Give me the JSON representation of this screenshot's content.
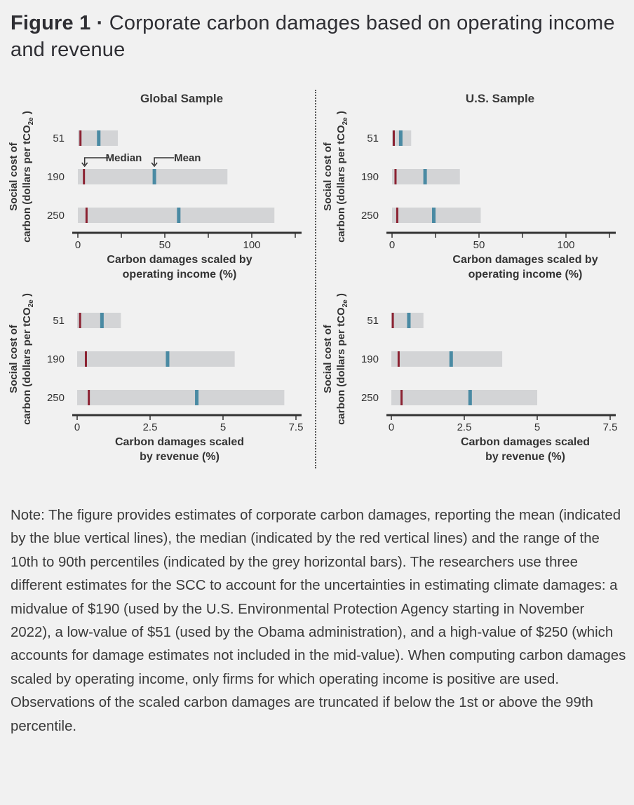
{
  "figure": {
    "label": "Figure 1 ·",
    "title": "Corporate carbon damages based on operating income and revenue"
  },
  "columns": {
    "left_title": "Global Sample",
    "right_title": "U.S. Sample"
  },
  "annotations": {
    "median": "Median",
    "mean": "Mean"
  },
  "colors": {
    "bar": "#d3d4d6",
    "median": "#8b2232",
    "mean": "#4a8aa3",
    "axis": "#333333",
    "background": "#f1f1f1"
  },
  "chart_data": [
    {
      "type": "bar",
      "id": "global_operating_income",
      "title": "Global Sample",
      "ylabel": "Social cost of carbon (dollars per tCO2e )",
      "xlabel": "Carbon damages scaled by operating income (%)",
      "xlabel_lines": [
        "Carbon damages scaled by",
        "operating income (%)"
      ],
      "xlim": [
        0,
        125
      ],
      "xticks": [
        0,
        25,
        50,
        75,
        100,
        125
      ],
      "xtick_labels": [
        "0",
        "",
        "50",
        "",
        "100",
        ""
      ],
      "categories": [
        "51",
        "190",
        "250"
      ],
      "p10": [
        0,
        0,
        0
      ],
      "p90": [
        23,
        86,
        113
      ],
      "median": [
        1.5,
        3.5,
        5
      ],
      "mean": [
        12,
        44,
        58
      ]
    },
    {
      "type": "bar",
      "id": "us_operating_income",
      "title": "U.S. Sample",
      "ylabel": "Social cost of carbon (dollars per tCO2e )",
      "xlabel": "Carbon damages scaled by operating income (%)",
      "xlabel_lines": [
        "Carbon damages scaled by",
        "operating income (%)"
      ],
      "xlim": [
        0,
        125
      ],
      "xticks": [
        0,
        25,
        50,
        75,
        100,
        125
      ],
      "xtick_labels": [
        "0",
        "",
        "50",
        "",
        "100",
        ""
      ],
      "categories": [
        "51",
        "190",
        "250"
      ],
      "p10": [
        0,
        0,
        0
      ],
      "p90": [
        11,
        39,
        51
      ],
      "median": [
        1,
        2,
        3
      ],
      "mean": [
        5,
        19,
        24
      ]
    },
    {
      "type": "bar",
      "id": "global_revenue",
      "title": "Global Sample",
      "ylabel": "Social cost of carbon (dollars per tCO2e )",
      "xlabel": "Carbon damages scaled by revenue (%)",
      "xlabel_lines": [
        "Carbon damages scaled",
        "by revenue (%)"
      ],
      "xlim": [
        0,
        7.5
      ],
      "xticks": [
        0,
        2.5,
        5,
        7.5
      ],
      "xtick_labels": [
        "0",
        "2.5",
        "5",
        "7.5"
      ],
      "categories": [
        "51",
        "190",
        "250"
      ],
      "p10": [
        0,
        0,
        0
      ],
      "p90": [
        1.5,
        5.4,
        7.1
      ],
      "median": [
        0.1,
        0.3,
        0.4
      ],
      "mean": [
        0.85,
        3.1,
        4.1
      ]
    },
    {
      "type": "bar",
      "id": "us_revenue",
      "title": "U.S. Sample",
      "ylabel": "Social cost of carbon (dollars per tCO2e )",
      "xlabel": "Carbon damages scaled by revenue (%)",
      "xlabel_lines": [
        "Carbon damages scaled",
        "by revenue (%)"
      ],
      "xlim": [
        0,
        7.5
      ],
      "xticks": [
        0,
        2.5,
        5,
        7.5
      ],
      "xtick_labels": [
        "0",
        "2.5",
        "5",
        "7.5"
      ],
      "categories": [
        "51",
        "190",
        "250"
      ],
      "p10": [
        0,
        0,
        0
      ],
      "p90": [
        1.1,
        3.8,
        5.0
      ],
      "median": [
        0.05,
        0.25,
        0.35
      ],
      "mean": [
        0.6,
        2.05,
        2.7
      ]
    }
  ],
  "note": "Note: The figure provides estimates of corporate carbon damages, reporting the mean (indicated by the blue vertical lines), the median (indicated by the red vertical lines) and the range of the 10th to 90th percentiles (indicated by the grey horizontal bars). The researchers use three different estimates for the SCC to account for the uncertainties in estimating climate damages: a midvalue of $190 (used by the U.S. Environmental Protection Agency starting in November 2022), a low-value of $51 (used by the Obama administration), and a high-value of $250 (which accounts for damage estimates not included in the mid-value). When computing carbon damages scaled by operating income, only firms for which operating income is positive are used. Observations of the scaled carbon damages are truncated if below the 1st or above the 99th percentile."
}
